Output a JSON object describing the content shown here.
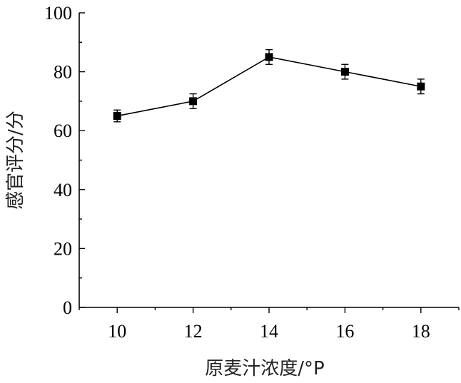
{
  "chart_data": {
    "type": "line",
    "title": "",
    "xlabel": "原麦汁浓度/°P",
    "ylabel": "感官评分/分",
    "x": [
      10,
      12,
      14,
      16,
      18
    ],
    "x_ticks": [
      "10",
      "12",
      "14",
      "16",
      "18"
    ],
    "y_ticks": [
      "0",
      "20",
      "40",
      "60",
      "80",
      "100"
    ],
    "xlim": [
      9,
      19
    ],
    "ylim": [
      0,
      100
    ],
    "grid": false,
    "series": [
      {
        "values": [
          65,
          70,
          85,
          80,
          75
        ],
        "errors": [
          2,
          2.5,
          2.5,
          2.5,
          2.5
        ],
        "marker": "square",
        "color": "#000000"
      }
    ]
  }
}
